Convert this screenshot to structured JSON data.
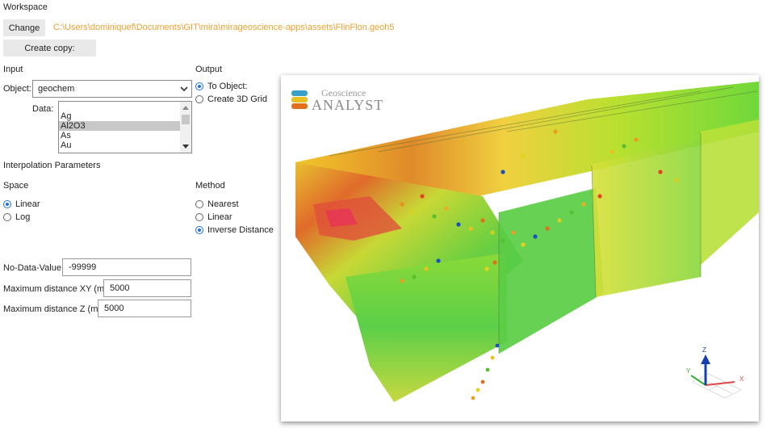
{
  "workspace": {
    "label": "Workspace",
    "change_button": "Change",
    "path": "C:\\Users\\dominiquef\\Documents\\GIT\\mira\\mirageoscience-apps\\assets\\FlinFlon.geoh5",
    "create_copy_button": "Create copy:"
  },
  "input": {
    "label": "Input",
    "object_label": "Object:",
    "object_value": "geochem",
    "data_label": "Data:",
    "data_options": [
      "",
      "Ag",
      "Al2O3",
      "As",
      "Au"
    ],
    "data_selected": "Al2O3"
  },
  "output": {
    "label": "Output",
    "options": [
      "To Object:",
      "Create 3D Grid"
    ],
    "selected": "To Object:"
  },
  "interpolation": {
    "label": "Interpolation Parameters",
    "space_label": "Space",
    "space_options": [
      "Linear",
      "Log"
    ],
    "space_selected": "Linear",
    "method_label": "Method",
    "method_options": [
      "Nearest",
      "Linear",
      "Inverse Distance"
    ],
    "method_selected": "Inverse Distance"
  },
  "fields": {
    "no_data_label": "No-Data-Value",
    "no_data_value": "-99999",
    "max_xy_label": "Maximum distance XY (m)",
    "max_xy_value": "5000",
    "max_z_label": "Maximum distance Z (m)",
    "max_z_value": "5000"
  },
  "viewer": {
    "logo_top": "Geoscience",
    "logo_bottom": "ANALYST",
    "axes": {
      "z": "Z",
      "y": "Y",
      "x": "X"
    },
    "colors": {
      "axis_x": "#e04848",
      "axis_y": "#38b038",
      "axis_z": "#1540b0",
      "logo_text": "#9a9a9a"
    }
  }
}
